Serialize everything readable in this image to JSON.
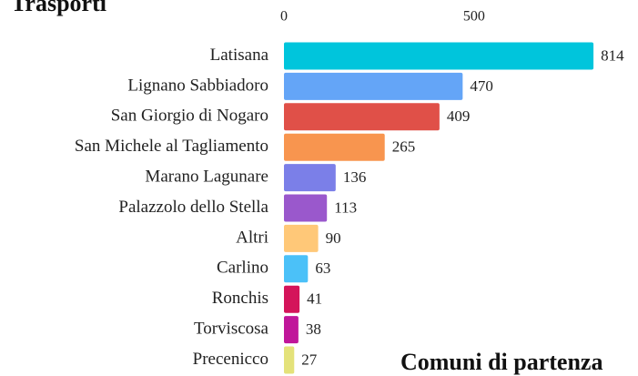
{
  "chart_data": {
    "type": "bar",
    "orientation": "horizontal",
    "title": "Trasporti",
    "annotations": [
      "Comuni di partenza"
    ],
    "categories": [
      "Latisana",
      "Lignano Sabbiadoro",
      "San Giorgio di Nogaro",
      "San Michele al Tagliamento",
      "Marano Lagunare",
      "Palazzolo dello Stella",
      "Altri",
      "Carlino",
      "Ronchis",
      "Torviscosa",
      "Precenicco"
    ],
    "values": [
      814,
      470,
      409,
      265,
      136,
      113,
      90,
      63,
      41,
      38,
      27
    ],
    "colors": [
      "#00c5dc",
      "#64a5f7",
      "#e05048",
      "#f8954f",
      "#7b7fe8",
      "#9a58cc",
      "#ffc878",
      "#4bc1f8",
      "#d4145a",
      "#c0169a",
      "#e4e27a"
    ],
    "xlim": [
      0,
      900
    ],
    "xticks": [
      0,
      500
    ],
    "grid": false
  }
}
